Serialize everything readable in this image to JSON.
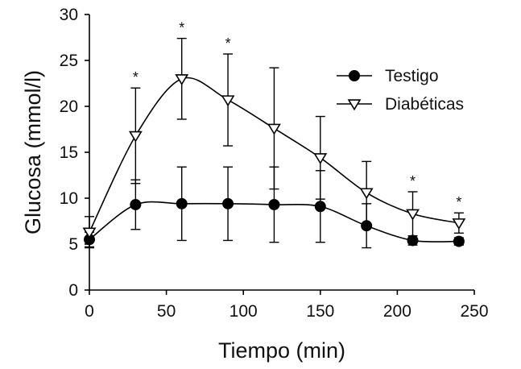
{
  "chart_data": {
    "type": "line",
    "xlabel": "Tiempo (min)",
    "ylabel": "Glucosa (mmol/l)",
    "xlim": [
      0,
      250
    ],
    "ylim": [
      0,
      30
    ],
    "x_ticks": [
      "0",
      "50",
      "100",
      "150",
      "200",
      "250"
    ],
    "y_ticks": [
      "0",
      "5",
      "10",
      "15",
      "20",
      "25",
      "30"
    ],
    "grid": false,
    "legend_position": "top-right",
    "x": [
      0,
      30,
      60,
      90,
      120,
      150,
      180,
      210,
      240
    ],
    "series": [
      {
        "name": "Testigo",
        "marker": "filled-circle",
        "values": [
          5.5,
          9.3,
          9.4,
          9.4,
          9.3,
          9.1,
          7.0,
          5.4,
          5.3
        ],
        "error": [
          0.8,
          2.7,
          4.0,
          4.0,
          4.1,
          3.9,
          2.4,
          0.5,
          0.4
        ]
      },
      {
        "name": "Diabéticas",
        "marker": "open-triangle-down",
        "values": [
          6.3,
          16.8,
          23.0,
          20.7,
          17.6,
          14.4,
          10.6,
          8.3,
          7.3
        ],
        "error": [
          1.7,
          5.2,
          4.4,
          5.0,
          6.6,
          4.5,
          3.4,
          2.4,
          1.1
        ]
      }
    ],
    "significance": {
      "symbol": "*",
      "x": [
        30,
        60,
        90,
        210,
        240
      ]
    }
  }
}
